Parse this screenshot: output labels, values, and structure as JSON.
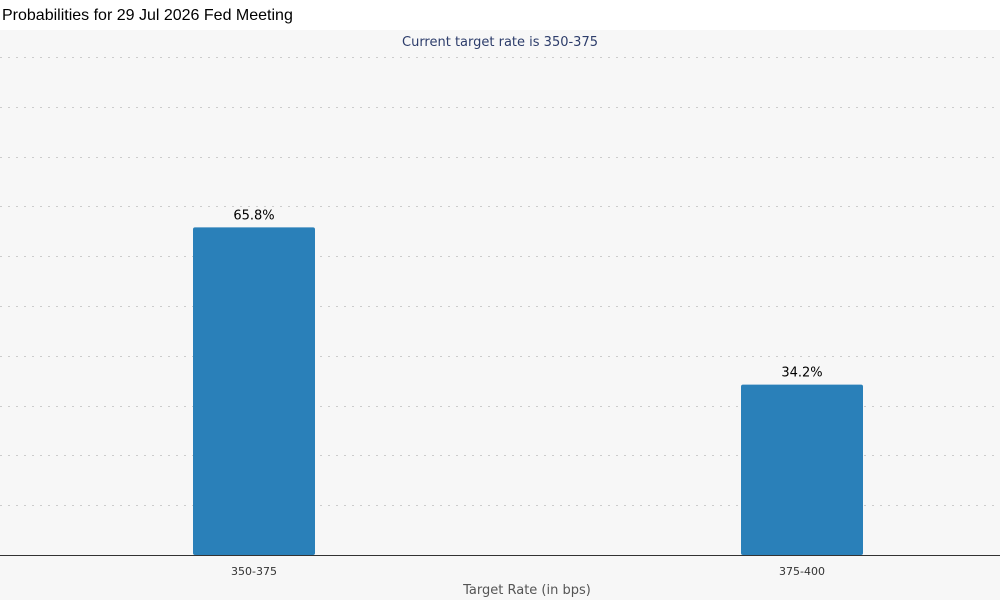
{
  "page_title": "Probabilities for 29 Jul 2026 Fed Meeting",
  "chart_data": {
    "type": "bar",
    "subtitle": "Current target rate is 350-375",
    "categories": [
      "350-375",
      "375-400"
    ],
    "values": [
      65.8,
      34.2
    ],
    "data_labels": [
      "65.8%",
      "34.2%"
    ],
    "xlabel": "Target Rate (in bps)",
    "ylabel": "",
    "ylim": [
      0,
      100
    ],
    "grid": true,
    "colors": {
      "bar": "#2a80b9",
      "subtitle": "#2d3d6b",
      "grid": "#cccccc",
      "axis": "#333333",
      "plot_background": "#f7f7f7"
    }
  }
}
